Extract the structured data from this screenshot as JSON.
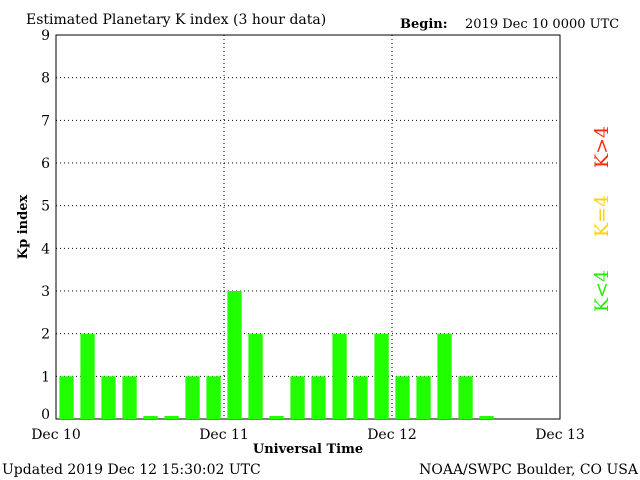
{
  "header": {
    "title": "Estimated Planetary K index (3 hour data)",
    "begin_label": "Begin:",
    "begin_value": "2019 Dec 10 0000 UTC"
  },
  "footer": {
    "updated": "Updated 2019 Dec 12 15:30:02 UTC",
    "source": "NOAA/SWPC Boulder, CO USA"
  },
  "legend": [
    {
      "label": "K>4",
      "color": "#ff2a00"
    },
    {
      "label": "K=4",
      "color": "#ffd400"
    },
    {
      "label": "K<4",
      "color": "#22ee00"
    }
  ],
  "chart_data": {
    "type": "bar",
    "xlabel": "Universal Time",
    "ylabel": "Kp index",
    "ylim": [
      0,
      9
    ],
    "yticks": [
      "0",
      "1",
      "2",
      "3",
      "4",
      "5",
      "6",
      "7",
      "8",
      "9"
    ],
    "xticks": [
      "Dec 10",
      "Dec 11",
      "Dec 12",
      "Dec 13"
    ],
    "bar_color": "#22ff00",
    "grid": "dotted",
    "interval_hours": 3,
    "values": [
      1,
      2,
      1,
      1,
      0.07,
      0.07,
      1,
      1,
      3,
      2,
      0.07,
      1,
      1,
      2,
      1,
      2,
      1,
      1,
      2,
      1,
      0.07
    ]
  }
}
